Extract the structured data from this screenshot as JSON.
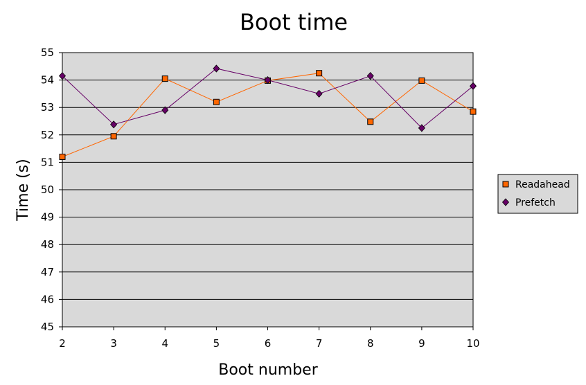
{
  "chart_data": {
    "type": "line",
    "title": "Boot time",
    "xlabel": "Boot number",
    "ylabel": "Time (s)",
    "x": [
      2,
      3,
      4,
      5,
      6,
      7,
      8,
      9,
      10
    ],
    "xlim": [
      2,
      10
    ],
    "ylim": [
      45,
      55
    ],
    "yticks": [
      45,
      46,
      47,
      48,
      49,
      50,
      51,
      52,
      53,
      54,
      55
    ],
    "grid": "horizontal",
    "legend_position": "right",
    "plot_background": "#d9d9d9",
    "series": [
      {
        "name": "Readahead",
        "color": "#ff6600",
        "marker": "square",
        "values": [
          51.2,
          51.95,
          54.05,
          53.2,
          53.98,
          54.25,
          52.48,
          53.98,
          52.85
        ]
      },
      {
        "name": "Prefetch",
        "color": "#660066",
        "marker": "diamond",
        "values": [
          54.15,
          52.38,
          52.9,
          54.42,
          54.0,
          53.5,
          54.15,
          52.25,
          53.78
        ]
      }
    ]
  }
}
